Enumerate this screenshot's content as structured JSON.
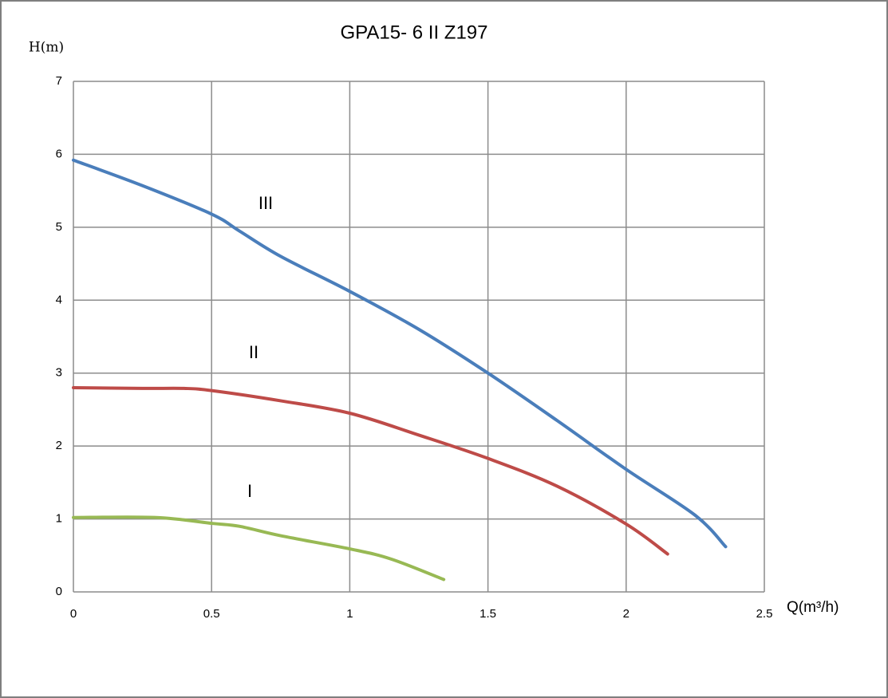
{
  "chart_data": {
    "type": "line",
    "title": "GPA15- 6  II  Z197",
    "y_label": "H(m)",
    "x_label": "Q(m³/h)",
    "xlim": [
      0,
      2.5
    ],
    "xticks": [
      0,
      0.5,
      1,
      1.5,
      2,
      2.5
    ],
    "ylim": [
      0,
      7
    ],
    "yticks": [
      0,
      1,
      2,
      3,
      4,
      5,
      6,
      7
    ],
    "grid": true,
    "series": [
      {
        "name": "III",
        "color": "#4a7ebb",
        "x": [
          0,
          0.25,
          0.5,
          0.6,
          0.75,
          1.0,
          1.25,
          1.5,
          1.75,
          2.0,
          2.25,
          2.36
        ],
        "values": [
          5.92,
          5.57,
          5.18,
          4.95,
          4.6,
          4.12,
          3.6,
          3.0,
          2.35,
          1.68,
          1.05,
          0.62
        ]
      },
      {
        "name": "II",
        "color": "#be4b48",
        "x": [
          0,
          0.25,
          0.4,
          0.5,
          0.75,
          1.0,
          1.25,
          1.5,
          1.75,
          2.0,
          2.15
        ],
        "values": [
          2.8,
          2.79,
          2.79,
          2.76,
          2.62,
          2.45,
          2.15,
          1.83,
          1.45,
          0.93,
          0.52
        ]
      },
      {
        "name": "I",
        "color": "#98b954",
        "x": [
          0,
          0.3,
          0.5,
          0.6,
          0.75,
          1.0,
          1.15,
          1.34
        ],
        "values": [
          1.02,
          1.02,
          0.94,
          0.9,
          0.77,
          0.59,
          0.45,
          0.17
        ]
      }
    ]
  }
}
